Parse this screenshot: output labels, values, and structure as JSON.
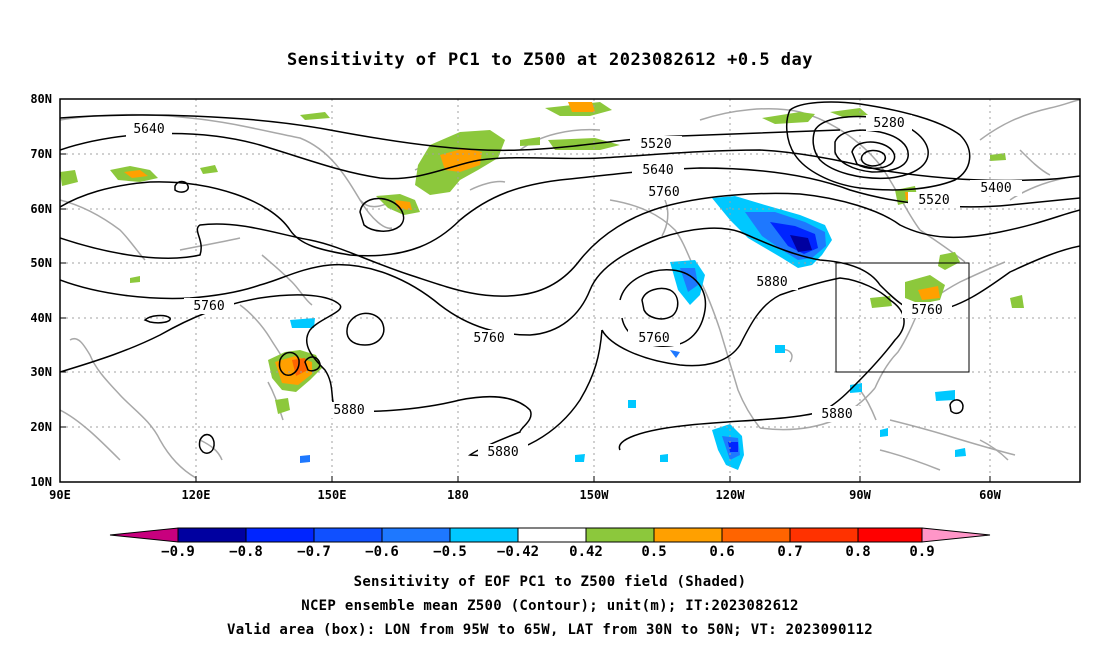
{
  "title": "Sensitivity of PC1 to Z500 at 2023082612 +0.5 day",
  "lat_ticks": [
    "80N",
    "70N",
    "60N",
    "50N",
    "40N",
    "30N",
    "20N",
    "10N"
  ],
  "lon_ticks": [
    "90E",
    "120E",
    "150E",
    "180",
    "150W",
    "120W",
    "90W",
    "60W"
  ],
  "contour_labels": [
    {
      "text": "5640"
    },
    {
      "text": "5520"
    },
    {
      "text": "5640"
    },
    {
      "text": "5760"
    },
    {
      "text": "5280"
    },
    {
      "text": "5400"
    },
    {
      "text": "5520"
    },
    {
      "text": "5760"
    },
    {
      "text": "5760"
    },
    {
      "text": "5760"
    },
    {
      "text": "5880"
    },
    {
      "text": "5760"
    },
    {
      "text": "5880"
    },
    {
      "text": "5880"
    },
    {
      "text": "5880"
    }
  ],
  "colorbar": {
    "labels": [
      "−0.9",
      "−0.8",
      "−0.7",
      "−0.6",
      "−0.5",
      "−0.42",
      "0.42",
      "0.5",
      "0.6",
      "0.7",
      "0.8",
      "0.9"
    ],
    "colors": [
      "#c8007e",
      "#0000a0",
      "#0025ff",
      "#1050ff",
      "#1e78ff",
      "#00c8ff",
      "#ffffff",
      "#8cc83c",
      "#ffa000",
      "#ff6400",
      "#ff3200",
      "#ff0000",
      "#ff96c8"
    ]
  },
  "valid_box": {
    "lon_from": "95W",
    "lon_to": "65W",
    "lat_from": "30N",
    "lat_to": "50N"
  },
  "caption": {
    "line1": "Sensitivity of EOF PC1 to Z500 field (Shaded)",
    "line2": "NCEP ensemble mean Z500 (Contour); unit(m); IT:2023082612",
    "line3": "Valid area (box): LON from 95W to 65W, LAT from 30N to 50N; VT: 2023090112"
  }
}
